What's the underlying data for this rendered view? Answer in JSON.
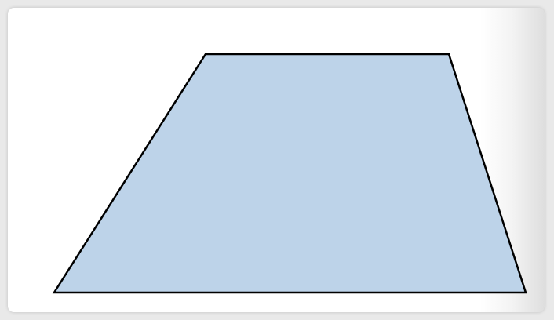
{
  "shape": {
    "type": "trapezoid",
    "fill_color": "#bdd3e9",
    "stroke_color": "#000000"
  }
}
